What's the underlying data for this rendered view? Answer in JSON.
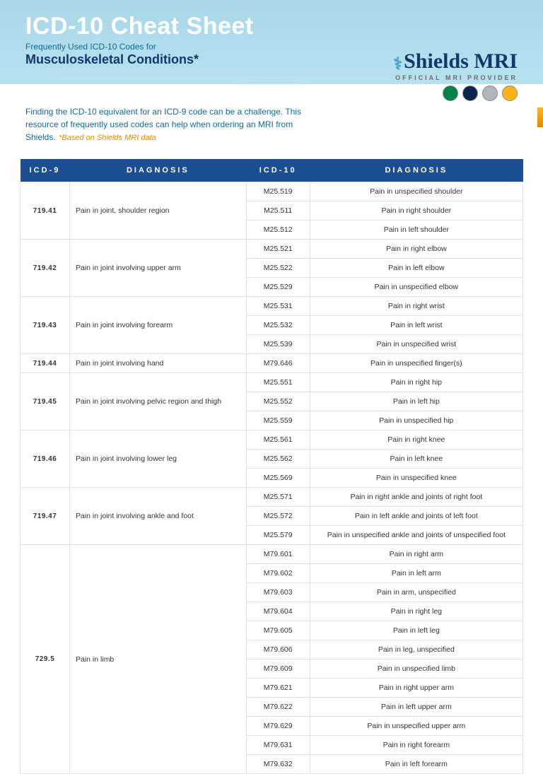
{
  "header": {
    "title": "ICD-10 Cheat Sheet",
    "subtitle1": "Frequently Used ICD-10 Codes for",
    "subtitle2": "Musculoskeletal Conditions*"
  },
  "brand": {
    "name": "Shields MRI",
    "tagline": "OFFICIAL MRI PROVIDER"
  },
  "intro": {
    "text": "Finding the ICD-10 equivalent for an ICD-9 code can be a challenge. This resource of frequently used codes can help when ordering an MRI from Shields.",
    "note": "*Based on Shields MRI data"
  },
  "columns": {
    "icd9": "ICD-9",
    "diag9": "DIAGNOSIS",
    "icd10": "ICD-10",
    "diag10": "DIAGNOSIS"
  },
  "team_colors": [
    "#008348",
    "#0d254c",
    "#b0b7bc",
    "#fcb514"
  ],
  "rows": [
    {
      "icd9": "719.41",
      "diag9": "Pain in joint, shoulder region",
      "map": [
        {
          "c": "M25.519",
          "d": "Pain in unspecified shoulder"
        },
        {
          "c": "M25.511",
          "d": "Pain in right shoulder"
        },
        {
          "c": "M25.512",
          "d": "Pain in left shoulder"
        }
      ]
    },
    {
      "icd9": "719.42",
      "diag9": "Pain in joint involving upper arm",
      "map": [
        {
          "c": "M25.521",
          "d": "Pain in right elbow"
        },
        {
          "c": "M25.522",
          "d": "Pain in left elbow"
        },
        {
          "c": "M25.529",
          "d": "Pain in unspecified elbow"
        }
      ]
    },
    {
      "icd9": "719.43",
      "diag9": "Pain in joint involving forearm",
      "map": [
        {
          "c": "M25.531",
          "d": "Pain in right wrist"
        },
        {
          "c": "M25.532",
          "d": "Pain in left wrist"
        },
        {
          "c": "M25.539",
          "d": "Pain in unspecified wrist"
        }
      ]
    },
    {
      "icd9": "719.44",
      "diag9": "Pain in joint involving hand",
      "map": [
        {
          "c": "M79.646",
          "d": "Pain in unspecified finger(s)"
        }
      ]
    },
    {
      "icd9": "719.45",
      "diag9": "Pain in joint involving pelvic region and thigh",
      "map": [
        {
          "c": "M25.551",
          "d": "Pain in right hip"
        },
        {
          "c": "M25.552",
          "d": "Pain in left hip"
        },
        {
          "c": "M25.559",
          "d": "Pain in unspecified hip"
        }
      ]
    },
    {
      "icd9": "719.46",
      "diag9": "Pain in joint involving lower leg",
      "map": [
        {
          "c": "M25.561",
          "d": "Pain in right knee"
        },
        {
          "c": "M25.562",
          "d": "Pain in left knee"
        },
        {
          "c": "M25.569",
          "d": "Pain in unspecified knee"
        }
      ]
    },
    {
      "icd9": "719.47",
      "diag9": "Pain in joint involving ankle and foot",
      "map": [
        {
          "c": "M25.571",
          "d": "Pain in right ankle and joints of right foot"
        },
        {
          "c": "M25.572",
          "d": "Pain in left ankle and joints of left foot"
        },
        {
          "c": "M25.579",
          "d": "Pain in unspecified ankle and joints of unspecified foot"
        }
      ]
    },
    {
      "icd9": "729.5",
      "diag9": "Pain in limb",
      "map": [
        {
          "c": "M79.601",
          "d": "Pain in right arm"
        },
        {
          "c": "M79.602",
          "d": "Pain in left arm"
        },
        {
          "c": "M79.603",
          "d": "Pain in arm, unspecified"
        },
        {
          "c": "M79.604",
          "d": "Pain in right leg"
        },
        {
          "c": "M79.605",
          "d": "Pain in left leg"
        },
        {
          "c": "M79.606",
          "d": "Pain in leg, unspecified"
        },
        {
          "c": "M79.609",
          "d": "Pain in unspecified limb"
        },
        {
          "c": "M79.621",
          "d": "Pain in right upper arm"
        },
        {
          "c": "M79.622",
          "d": "Pain in left upper arm"
        },
        {
          "c": "M79.629",
          "d": "Pain in unspecified upper arm"
        },
        {
          "c": "M79.631",
          "d": "Pain in right forearm"
        },
        {
          "c": "M79.632",
          "d": "Pain in left forearm"
        }
      ]
    }
  ]
}
